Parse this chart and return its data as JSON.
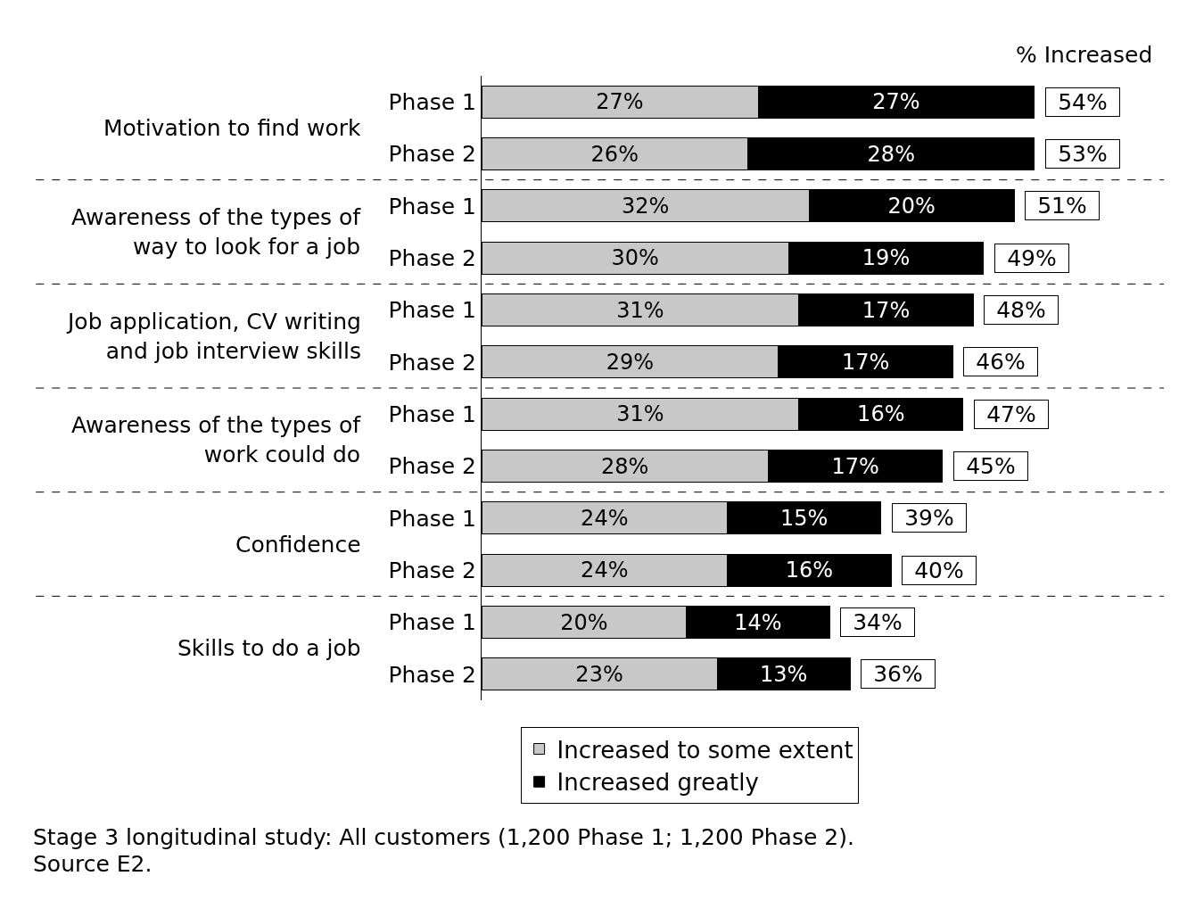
{
  "chart_data": {
    "type": "bar",
    "orientation": "horizontal",
    "stacked": true,
    "categories": [
      "Phase 1",
      "Phase 2",
      "Phase 1",
      "Phase 2",
      "Phase 1",
      "Phase 2",
      "Phase 1",
      "Phase 2",
      "Phase 1",
      "Phase 2",
      "Phase 1",
      "Phase 2"
    ],
    "series": [
      {
        "name": "Increased to some extent",
        "color": "#c8c8c8",
        "values": [
          27,
          26,
          32,
          30,
          31,
          29,
          31,
          28,
          24,
          24,
          20,
          23
        ],
        "value_labels": [
          "27%",
          "26%",
          "32%",
          "30%",
          "31%",
          "29%",
          "31%",
          "28%",
          "24%",
          "24%",
          "20%",
          "23%"
        ]
      },
      {
        "name": "Increased greatly",
        "color": "#000000",
        "values": [
          27,
          28,
          20,
          19,
          17,
          17,
          16,
          17,
          15,
          16,
          14,
          13
        ],
        "value_labels": [
          "27%",
          "28%",
          "20%",
          "19%",
          "17%",
          "17%",
          "16%",
          "17%",
          "15%",
          "16%",
          "14%",
          "13%"
        ]
      }
    ],
    "totals": [
      "54%",
      "53%",
      "51%",
      "49%",
      "48%",
      "46%",
      "47%",
      "45%",
      "39%",
      "40%",
      "34%",
      "36%"
    ],
    "xlim": [
      0,
      54
    ],
    "tick_labels": "y",
    "legend": "bottom",
    "annotations": [
      "Motivation to find work",
      "Awareness of the types of\nway to look for a job",
      "Job application, CV writing\nand job interview skills",
      "Awareness of the types of\nwork could do",
      "Confidence",
      "Skills to do a job",
      "% Increased",
      "Stage 3 longitudinal study: All customers (1,200 Phase 1; 1,200 Phase 2).",
      "Source E2."
    ]
  }
}
